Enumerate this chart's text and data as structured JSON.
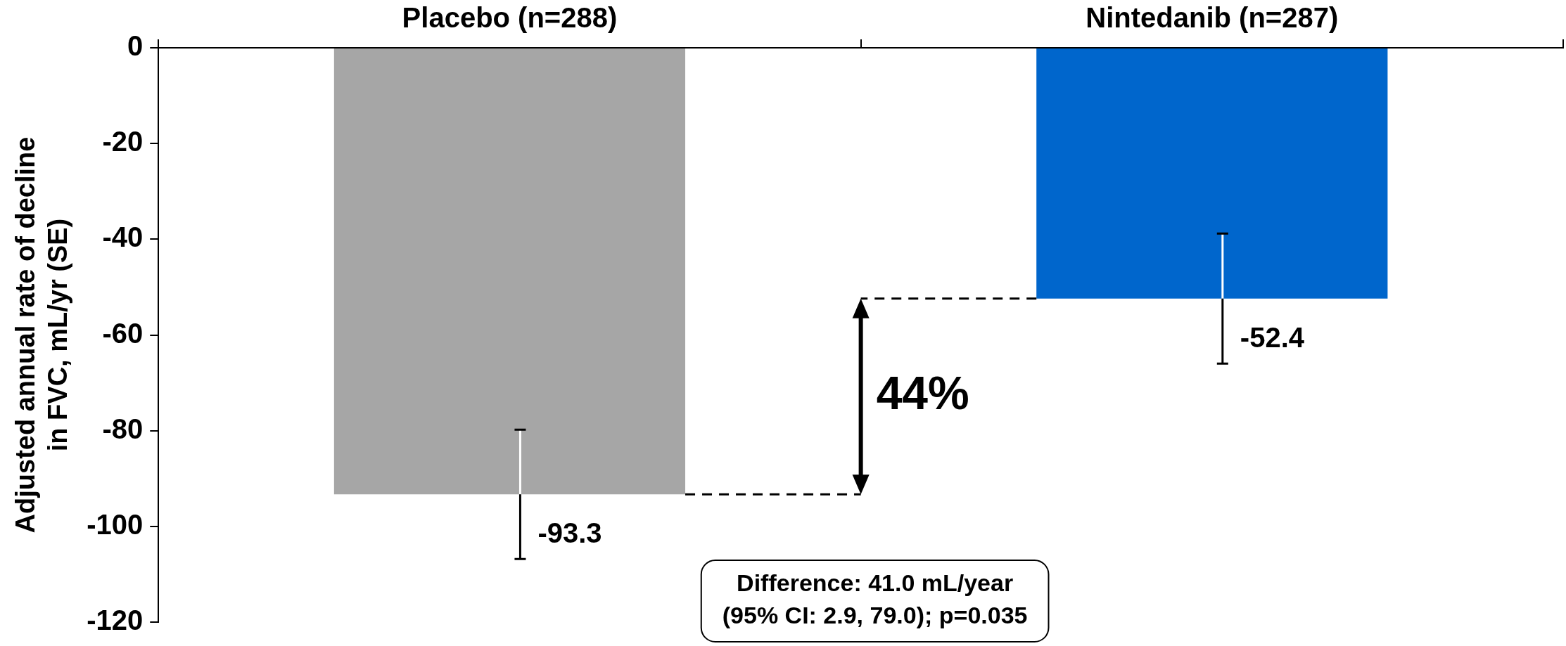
{
  "chart_data": {
    "type": "bar",
    "ylabel": "Adjusted annual rate of decline\nin FVC, mL/yr (SE)",
    "categories": [
      "Placebo (n=288)",
      "Nintedanib (n=287)"
    ],
    "values": [
      -93.3,
      -52.4
    ],
    "errors": [
      13.5,
      13.6
    ],
    "colors": [
      "#a6a6a6",
      "#0066cc"
    ],
    "ylim": [
      -120,
      0
    ],
    "yticks": [
      0,
      -20,
      -40,
      -60,
      -80,
      -100,
      -120
    ],
    "grid": false,
    "legend": false,
    "data_labels": true,
    "annotations": [
      "44%",
      "Difference: 41.0 mL/year\n(95% CI: 2.9, 79.0); p=0.035"
    ]
  }
}
